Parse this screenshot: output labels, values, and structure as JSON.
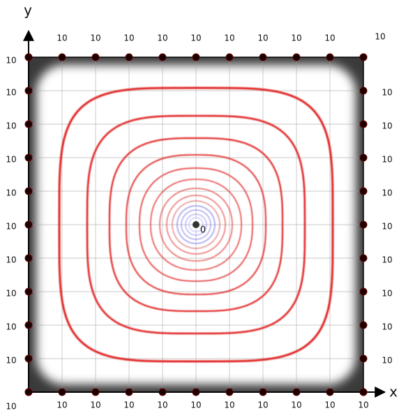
{
  "axis_labels": {
    "x": "x",
    "y": "y",
    "origin": "0"
  },
  "top_labels": [
    "10",
    "10",
    "10",
    "10",
    "10",
    "10",
    "10",
    "10",
    "10"
  ],
  "top_right_label": "10",
  "left_labels": [
    "10",
    "10",
    "10",
    "10",
    "10",
    "10",
    "10",
    "10",
    "10",
    "10"
  ],
  "bottom_left_label": "10",
  "right_labels": [
    "10",
    "10",
    "10",
    "10",
    "10",
    "10",
    "10",
    "10",
    "10"
  ],
  "bottom_labels": [
    "10",
    "10",
    "10",
    "10",
    "10",
    "10",
    "10",
    "10",
    "10",
    "10"
  ]
}
